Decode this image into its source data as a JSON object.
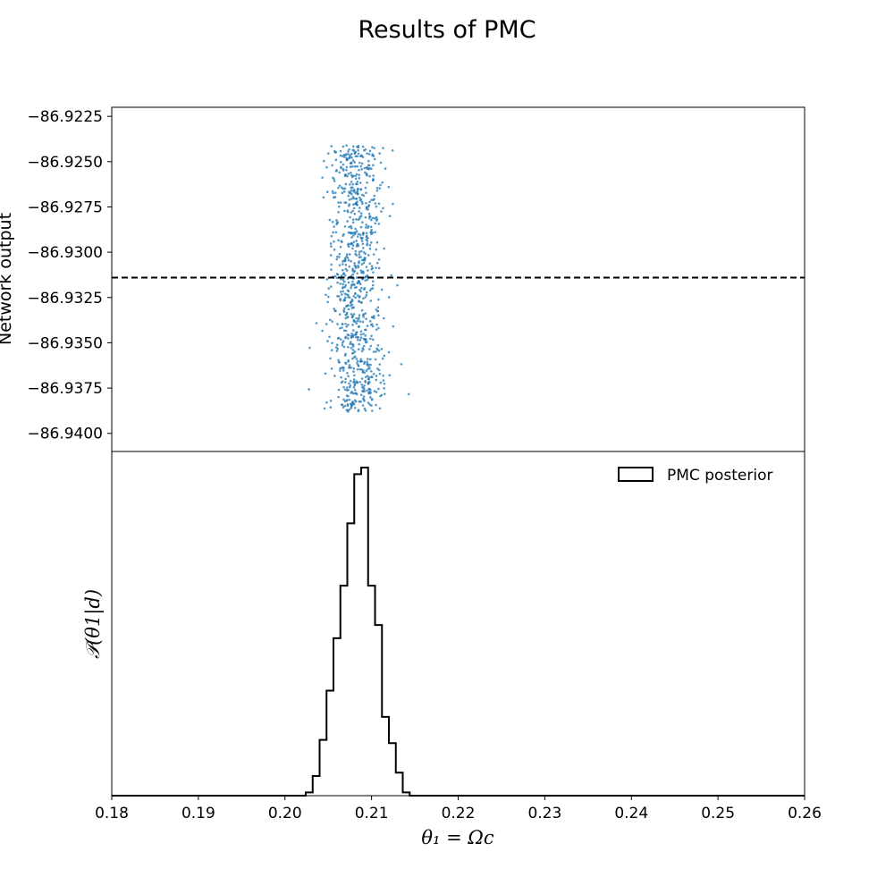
{
  "figure": {
    "title": "Results of PMC"
  },
  "chart_data": [
    {
      "type": "scatter",
      "ylabel": "Network output",
      "xlim": [
        0.18,
        0.26
      ],
      "ylim": [
        -86.941,
        -86.922
      ],
      "yticks": [
        -86.9225,
        -86.925,
        -86.9275,
        -86.93,
        -86.9325,
        -86.935,
        -86.9375,
        -86.94
      ],
      "ytick_labels": [
        "−86.9225",
        "−86.9250",
        "−86.9275",
        "−86.9300",
        "−86.9325",
        "−86.9350",
        "−86.9375",
        "−86.9400"
      ],
      "reference_line": {
        "y": -86.9314,
        "style": "dashed",
        "color": "#000000"
      },
      "points": {
        "count": 900,
        "x_center": 0.2082,
        "x_std": 0.0016,
        "x_range": [
          0.2025,
          0.2145
        ],
        "y_range": [
          -86.9388,
          -86.9241
        ],
        "color": "#1f77b4"
      }
    },
    {
      "type": "histogram",
      "xlabel": "θ₁ = Ωc",
      "ylabel": "𝒫(θ1|d)",
      "xlim": [
        0.18,
        0.26
      ],
      "xticks": [
        0.18,
        0.19,
        0.2,
        0.21,
        0.22,
        0.23,
        0.24,
        0.25,
        0.26
      ],
      "xtick_labels": [
        "0.18",
        "0.19",
        "0.20",
        "0.21",
        "0.22",
        "0.23",
        "0.24",
        "0.25",
        "0.26"
      ],
      "legend": {
        "label": "PMC posterior",
        "position": "top-right"
      },
      "bin_width": 0.0008,
      "bin_edges": [
        0.2024,
        0.2032,
        0.204,
        0.2048,
        0.2056,
        0.2064,
        0.2072,
        0.208,
        0.2088,
        0.2096,
        0.2104,
        0.2112,
        0.212,
        0.2128,
        0.2136,
        0.2144,
        0.2152
      ],
      "counts": [
        0.01,
        0.06,
        0.17,
        0.32,
        0.48,
        0.64,
        0.83,
        0.98,
        1.0,
        0.64,
        0.52,
        0.24,
        0.16,
        0.07,
        0.01,
        0.0
      ],
      "color": "#000000"
    }
  ]
}
